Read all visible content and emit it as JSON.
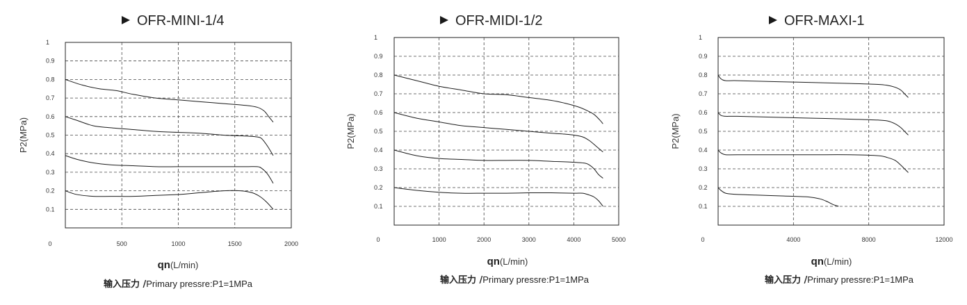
{
  "chart_data": [
    {
      "type": "line",
      "title": "OFR-MINI-1/4",
      "ylabel": "P2(MPa)",
      "xlabel": "qn",
      "xlabel_unit": "(L/min)",
      "note_bold": "输入压力 /",
      "note": "Primary pressre:P1=1MPa",
      "xlim": [
        0,
        2000
      ],
      "ylim": [
        0,
        1
      ],
      "xticks": [
        0,
        500,
        1000,
        1500,
        2000
      ],
      "xtick_labels": [
        "0",
        "500",
        "1000",
        "1500",
        "2000"
      ],
      "xgrid": [
        500,
        1000,
        1500
      ],
      "yticks": [
        0.1,
        0.2,
        0.3,
        0.4,
        0.5,
        0.6,
        0.7,
        0.8,
        0.9,
        1
      ],
      "ytick_labels": [
        "0.1",
        "0.2",
        "0.3",
        "0.4",
        "0.5",
        "0.6",
        "0.7",
        "0.8",
        "0.9",
        "1"
      ],
      "ygrid": [
        0.1,
        0.2,
        0.3,
        0.4,
        0.5,
        0.6,
        0.7,
        0.8,
        0.9
      ],
      "grid": true,
      "series": [
        {
          "x": [
            0,
            150,
            300,
            450,
            600,
            800,
            1000,
            1200,
            1400,
            1600,
            1700,
            1760,
            1800,
            1840
          ],
          "y": [
            0.8,
            0.77,
            0.75,
            0.74,
            0.72,
            0.7,
            0.69,
            0.68,
            0.67,
            0.66,
            0.65,
            0.63,
            0.6,
            0.57
          ]
        },
        {
          "x": [
            0,
            100,
            250,
            400,
            600,
            800,
            1000,
            1200,
            1400,
            1600,
            1700,
            1740,
            1790,
            1840
          ],
          "y": [
            0.6,
            0.58,
            0.55,
            0.54,
            0.53,
            0.52,
            0.515,
            0.51,
            0.5,
            0.495,
            0.49,
            0.48,
            0.44,
            0.39
          ]
        },
        {
          "x": [
            0,
            100,
            250,
            400,
            600,
            800,
            1000,
            1200,
            1400,
            1600,
            1700,
            1740,
            1790,
            1840
          ],
          "y": [
            0.39,
            0.37,
            0.35,
            0.34,
            0.335,
            0.33,
            0.33,
            0.33,
            0.33,
            0.33,
            0.33,
            0.32,
            0.29,
            0.24
          ]
        },
        {
          "x": [
            0,
            100,
            250,
            400,
            600,
            800,
            1000,
            1200,
            1400,
            1550,
            1650,
            1720,
            1780,
            1840
          ],
          "y": [
            0.2,
            0.18,
            0.17,
            0.17,
            0.17,
            0.175,
            0.18,
            0.19,
            0.2,
            0.2,
            0.19,
            0.17,
            0.14,
            0.1
          ]
        }
      ]
    },
    {
      "type": "line",
      "title": "OFR-MIDI-1/2",
      "ylabel": "P2(MPa)",
      "xlabel": "qn",
      "xlabel_unit": "(L/min)",
      "note_bold": "输入压力 /",
      "note": "Primary pressre:P1=1MPa",
      "xlim": [
        0,
        5000
      ],
      "ylim": [
        0,
        1
      ],
      "xticks": [
        0,
        1000,
        2000,
        3000,
        4000,
        5000
      ],
      "xtick_labels": [
        "0",
        "1000",
        "2000",
        "3000",
        "4000",
        "5000"
      ],
      "xgrid": [
        1000,
        2000,
        3000,
        4000
      ],
      "yticks": [
        0.1,
        0.2,
        0.3,
        0.4,
        0.5,
        0.6,
        0.7,
        0.8,
        0.9,
        1
      ],
      "ytick_labels": [
        "0.1",
        "0.2",
        "0.3",
        "0.4",
        "0.5",
        "0.6",
        "0.7",
        "0.8",
        "0.9",
        "1"
      ],
      "ygrid": [
        0.1,
        0.2,
        0.3,
        0.4,
        0.5,
        0.6,
        0.7,
        0.8,
        0.9
      ],
      "grid": true,
      "series": [
        {
          "x": [
            0,
            500,
            1000,
            1500,
            2000,
            2500,
            3000,
            3500,
            3800,
            4100,
            4300,
            4450,
            4580,
            4650
          ],
          "y": [
            0.8,
            0.77,
            0.74,
            0.72,
            0.7,
            0.695,
            0.68,
            0.665,
            0.65,
            0.63,
            0.61,
            0.59,
            0.56,
            0.54
          ]
        },
        {
          "x": [
            0,
            500,
            1000,
            1500,
            2000,
            2500,
            3000,
            3500,
            3800,
            4000,
            4200,
            4350,
            4500,
            4650
          ],
          "y": [
            0.6,
            0.57,
            0.55,
            0.53,
            0.52,
            0.51,
            0.5,
            0.49,
            0.485,
            0.48,
            0.47,
            0.45,
            0.42,
            0.39
          ]
        },
        {
          "x": [
            0,
            500,
            1000,
            1500,
            2000,
            2500,
            3000,
            3500,
            4000,
            4250,
            4350,
            4450,
            4550,
            4650
          ],
          "y": [
            0.4,
            0.37,
            0.355,
            0.35,
            0.345,
            0.345,
            0.345,
            0.34,
            0.335,
            0.33,
            0.32,
            0.3,
            0.27,
            0.25
          ]
        },
        {
          "x": [
            0,
            500,
            1000,
            1500,
            2000,
            2500,
            3000,
            3500,
            4000,
            4200,
            4350,
            4450,
            4550,
            4650
          ],
          "y": [
            0.2,
            0.185,
            0.175,
            0.17,
            0.17,
            0.17,
            0.172,
            0.172,
            0.17,
            0.17,
            0.16,
            0.15,
            0.13,
            0.1
          ]
        }
      ]
    },
    {
      "type": "line",
      "title": "OFR-MAXI-1",
      "ylabel": "P2(MPa)",
      "xlabel": "qn",
      "xlabel_unit": "(L/min)",
      "note_bold": "输入压力 /",
      "note": "Primary pressre:P1=1MPa",
      "xlim": [
        0,
        12000
      ],
      "ylim": [
        0,
        1
      ],
      "xticks": [
        0,
        4000,
        8000,
        12000
      ],
      "xtick_labels": [
        "0",
        "4000",
        "8000",
        "12000"
      ],
      "xgrid": [
        4000,
        8000
      ],
      "yticks": [
        0.1,
        0.2,
        0.3,
        0.4,
        0.5,
        0.6,
        0.7,
        0.8,
        0.9,
        1
      ],
      "ytick_labels": [
        "0.1",
        "0.2",
        "0.3",
        "0.4",
        "0.5",
        "0.6",
        "0.7",
        "0.8",
        "0.9",
        "1"
      ],
      "ygrid": [
        0.1,
        0.2,
        0.3,
        0.4,
        0.5,
        0.6,
        0.7,
        0.8,
        0.9
      ],
      "grid": true,
      "series": [
        {
          "x": [
            0,
            150,
            400,
            1000,
            3000,
            5000,
            7000,
            8500,
            9000,
            9400,
            9700,
            9900,
            10100
          ],
          "y": [
            0.8,
            0.78,
            0.77,
            0.77,
            0.765,
            0.76,
            0.755,
            0.75,
            0.745,
            0.735,
            0.72,
            0.7,
            0.68
          ]
        },
        {
          "x": [
            0,
            150,
            400,
            1000,
            3000,
            5000,
            7000,
            8500,
            9000,
            9400,
            9700,
            9900,
            10100
          ],
          "y": [
            0.6,
            0.585,
            0.58,
            0.58,
            0.575,
            0.57,
            0.565,
            0.56,
            0.555,
            0.54,
            0.52,
            0.5,
            0.48
          ]
        },
        {
          "x": [
            0,
            150,
            400,
            1000,
            3000,
            5000,
            7000,
            8500,
            9000,
            9400,
            9700,
            9900,
            10100
          ],
          "y": [
            0.4,
            0.385,
            0.375,
            0.375,
            0.375,
            0.375,
            0.375,
            0.37,
            0.36,
            0.345,
            0.32,
            0.3,
            0.28
          ]
        },
        {
          "x": [
            0,
            150,
            400,
            800,
            2000,
            3500,
            4800,
            5400,
            5800,
            6100,
            6400
          ],
          "y": [
            0.2,
            0.185,
            0.17,
            0.165,
            0.16,
            0.155,
            0.15,
            0.14,
            0.125,
            0.11,
            0.1
          ]
        }
      ]
    }
  ]
}
